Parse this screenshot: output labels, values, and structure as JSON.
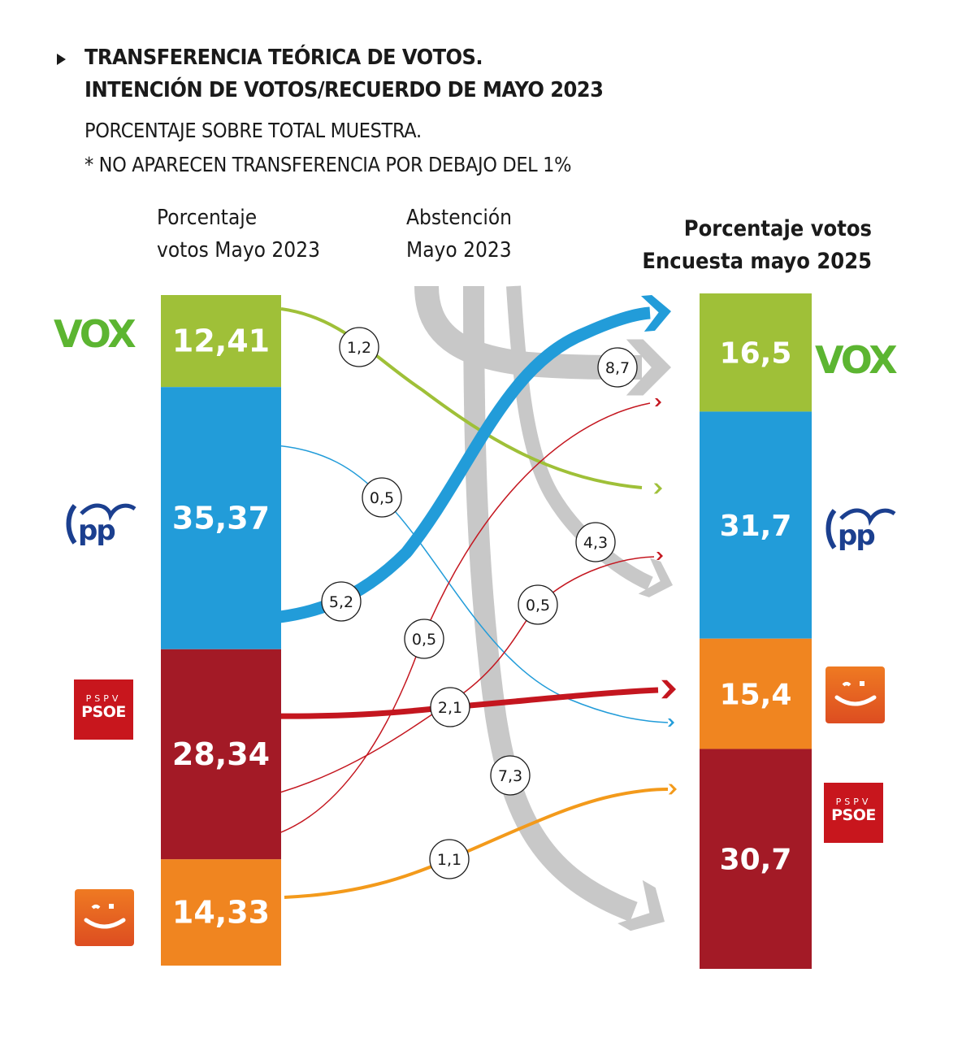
{
  "header": {
    "title_line1": "TRANSFERENCIA TEÓRICA DE VOTOS.",
    "title_line2": "INTENCIÓN DE VOTOS/RECUERDO DE MAYO 2023",
    "subtitle_line1": "PORCENTAJE SOBRE TOTAL MUESTRA.",
    "subtitle_line2": "* NO APARECEN TRANSFERENCIA POR DEBAJO DEL 1%"
  },
  "columns": {
    "left_line1": "Porcentaje",
    "left_line2": "votos Mayo 2023",
    "middle_line1": "Abstención",
    "middle_line2": "Mayo 2023",
    "right_line1": "Porcentaje votos",
    "right_line2": "Encuesta mayo 2025"
  },
  "logos": {
    "vox": "VOX",
    "pp": "PP",
    "psoe_top": "PSPV",
    "psoe_bottom": "PSOE",
    "compromis": "Compromís"
  },
  "chart_data": {
    "type": "sankey",
    "title": "TRANSFERENCIA TEÓRICA DE VOTOS. INTENCIÓN DE VOTOS/RECUERDO DE MAYO 2023",
    "subtitle": "PORCENTAJE SOBRE TOTAL MUESTRA. * NO APARECEN TRANSFERENCIA POR DEBAJO DEL 1%",
    "colors": {
      "VOX": "#9fc038",
      "PP": "#229cd9",
      "PSOE": "#a31a26",
      "Compromís": "#f08520",
      "Abstención": "#c8c8c8",
      "PSOE_flow": "#c4161f",
      "Compromís_flow": "#f39a1b"
    },
    "left": {
      "label": "Porcentaje votos Mayo 2023",
      "bars": [
        {
          "party": "VOX",
          "value": 12.41,
          "label": "12,41"
        },
        {
          "party": "PP",
          "value": 35.37,
          "label": "35,37"
        },
        {
          "party": "PSOE",
          "value": 28.34,
          "label": "28,34"
        },
        {
          "party": "Compromís",
          "value": 14.33,
          "label": "14,33"
        }
      ]
    },
    "right": {
      "label": "Porcentaje votos Encuesta mayo 2025",
      "bars": [
        {
          "party": "VOX",
          "value": 16.5,
          "label": "16,5"
        },
        {
          "party": "PP",
          "value": 31.7,
          "label": "31,7"
        },
        {
          "party": "Compromís",
          "value": 15.4,
          "label": "15,4"
        },
        {
          "party": "PSOE",
          "value": 30.7,
          "label": "30,7"
        }
      ]
    },
    "flows": [
      {
        "from": "VOX",
        "to": "PP",
        "value": 1.2,
        "label": "1,2"
      },
      {
        "from": "PP",
        "to": "VOX",
        "value": 5.2,
        "label": "5,2"
      },
      {
        "from": "PP",
        "to": "Compromís",
        "value": 0.5,
        "label": "0,5"
      },
      {
        "from": "PSOE",
        "to": "VOX",
        "value": 0.5,
        "label": "0,5"
      },
      {
        "from": "PSOE",
        "to": "PP",
        "value": 0.5,
        "label": "0,5"
      },
      {
        "from": "PSOE",
        "to": "Compromís",
        "value": 2.1,
        "label": "2,1"
      },
      {
        "from": "Compromís",
        "to": "PSOE",
        "value": 1.1,
        "label": "1,1"
      },
      {
        "from": "Abstención",
        "to": "VOX",
        "value": 8.7,
        "label": "8,7"
      },
      {
        "from": "Abstención",
        "to": "PP",
        "value": 4.3,
        "label": "4,3"
      },
      {
        "from": "Abstención",
        "to": "PSOE",
        "value": 7.3,
        "label": "7,3"
      }
    ]
  }
}
